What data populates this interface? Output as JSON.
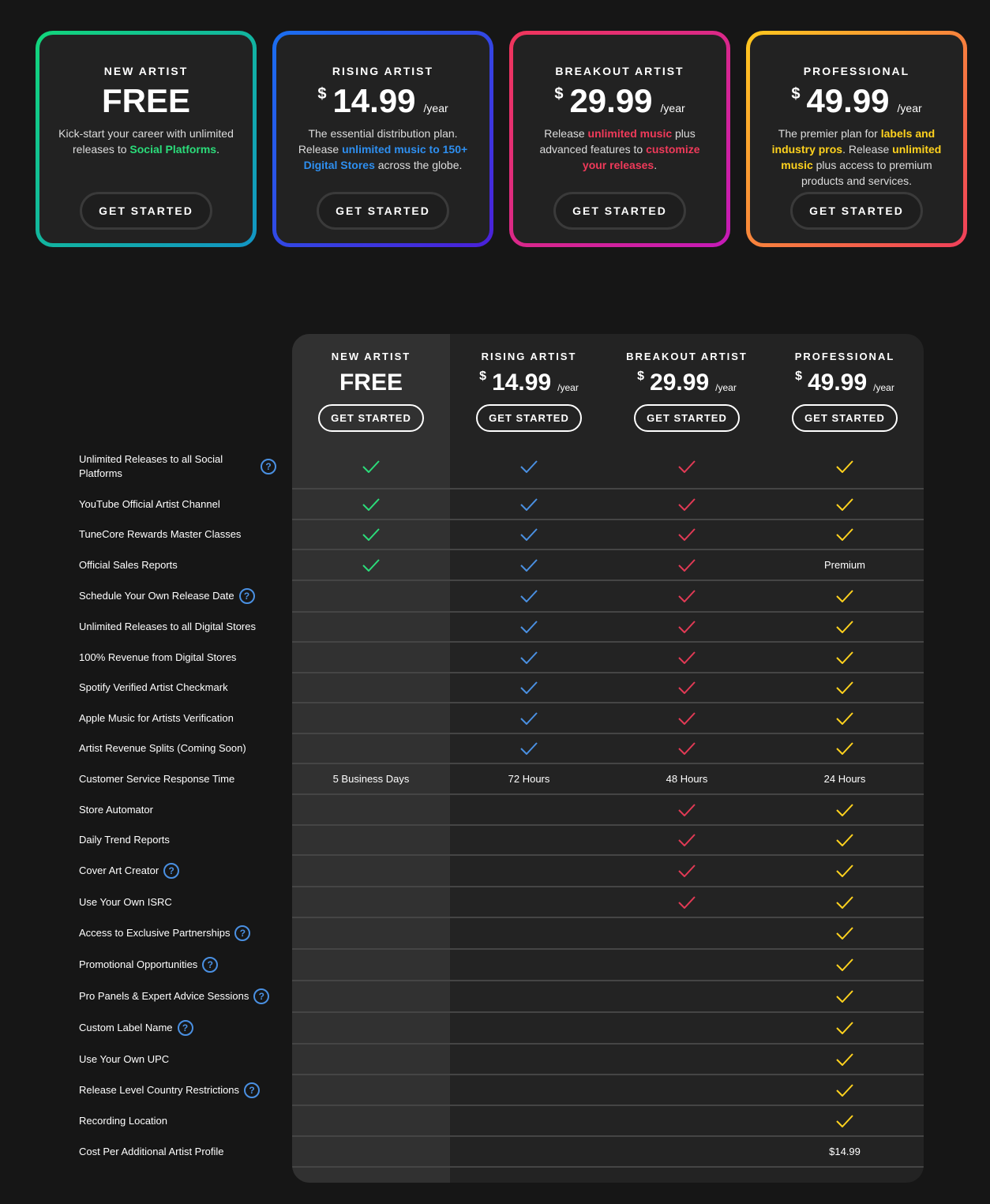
{
  "plans": [
    {
      "name": "NEW ARTIST",
      "price_big": "FREE",
      "currency": "",
      "period": "",
      "desc": [
        "Kick-start your career with unlimited releases to ",
        "Social Platforms",
        "."
      ],
      "highlight_color": "#2bdc7a",
      "button": "GET STARTED",
      "gradient": [
        "#12d67b",
        "#1294c4"
      ]
    },
    {
      "name": "RISING ARTIST",
      "price_big": "14.99",
      "currency": "$",
      "period": "/year",
      "desc": [
        "The essential distribution plan. Release ",
        "unlimited music to 150+ Digital Stores",
        " across the globe."
      ],
      "highlight_color": "#2e8ff0",
      "button": "GET STARTED",
      "gradient": [
        "#1a6ff0",
        "#4a20d8"
      ]
    },
    {
      "name": "BREAKOUT ARTIST",
      "price_big": "29.99",
      "currency": "$",
      "period": "/year",
      "desc": [
        "Release ",
        "unlimited music",
        " plus advanced features to ",
        "customize your releases",
        "."
      ],
      "highlight_color": "#f03a5a",
      "button": "GET STARTED",
      "gradient": [
        "#f0365a",
        "#c41ab8"
      ]
    },
    {
      "name": "PROFESSIONAL",
      "price_big": "49.99",
      "currency": "$",
      "period": "/year",
      "desc": [
        "The premier plan for ",
        "labels and industry pros",
        ". Release ",
        "unlimited music",
        " plus access to premium products and services."
      ],
      "highlight_color": "#ffd21e",
      "button": "GET STARTED",
      "gradient": [
        "#ffc81e",
        "#f03e5a"
      ]
    }
  ],
  "table": {
    "check_colors": [
      "#2bdc7a",
      "#4a90e2",
      "#e23a55",
      "#ffd21e"
    ],
    "rows": [
      {
        "label": "Unlimited Releases to all Social Platforms",
        "help": true,
        "cells": [
          "check",
          "check",
          "check",
          "check"
        ]
      },
      {
        "label": "YouTube Official Artist Channel",
        "help": false,
        "cells": [
          "check",
          "check",
          "check",
          "check"
        ]
      },
      {
        "label": "TuneCore Rewards Master Classes",
        "help": false,
        "cells": [
          "check",
          "check",
          "check",
          "check"
        ]
      },
      {
        "label": "Official Sales Reports",
        "help": false,
        "cells": [
          "check",
          "check",
          "check",
          "Premium"
        ]
      },
      {
        "label": "Schedule Your Own Release Date",
        "help": true,
        "cells": [
          "",
          "check",
          "check",
          "check"
        ]
      },
      {
        "label": "Unlimited Releases to all Digital Stores",
        "help": false,
        "cells": [
          "",
          "check",
          "check",
          "check"
        ]
      },
      {
        "label": "100% Revenue from Digital Stores",
        "help": false,
        "cells": [
          "",
          "check",
          "check",
          "check"
        ]
      },
      {
        "label": "Spotify Verified Artist Checkmark",
        "help": false,
        "cells": [
          "",
          "check",
          "check",
          "check"
        ]
      },
      {
        "label": "Apple Music for Artists Verification",
        "help": false,
        "cells": [
          "",
          "check",
          "check",
          "check"
        ]
      },
      {
        "label": "Artist Revenue Splits (Coming Soon)",
        "help": false,
        "cells": [
          "",
          "check",
          "check",
          "check"
        ]
      },
      {
        "label": "Customer Service Response Time",
        "help": false,
        "cells": [
          "5 Business Days",
          "72 Hours",
          "48 Hours",
          "24 Hours"
        ]
      },
      {
        "label": "Store Automator",
        "help": false,
        "cells": [
          "",
          "",
          "check",
          "check"
        ]
      },
      {
        "label": "Daily Trend Reports",
        "help": false,
        "cells": [
          "",
          "",
          "check",
          "check"
        ]
      },
      {
        "label": "Cover Art Creator",
        "help": true,
        "cells": [
          "",
          "",
          "check",
          "check"
        ]
      },
      {
        "label": "Use Your Own ISRC",
        "help": false,
        "cells": [
          "",
          "",
          "check",
          "check"
        ]
      },
      {
        "label": "Access to Exclusive Partnerships",
        "help": true,
        "cells": [
          "",
          "",
          "",
          "check"
        ]
      },
      {
        "label": "Promotional Opportunities",
        "help": true,
        "cells": [
          "",
          "",
          "",
          "check"
        ]
      },
      {
        "label": "Pro Panels & Expert Advice Sessions",
        "help": true,
        "cells": [
          "",
          "",
          "",
          "check"
        ]
      },
      {
        "label": "Custom Label Name",
        "help": true,
        "cells": [
          "",
          "",
          "",
          "check"
        ]
      },
      {
        "label": "Use Your Own UPC",
        "help": false,
        "cells": [
          "",
          "",
          "",
          "check"
        ]
      },
      {
        "label": "Release Level Country Restrictions",
        "help": true,
        "cells": [
          "",
          "",
          "",
          "check"
        ]
      },
      {
        "label": "Recording Location",
        "help": false,
        "cells": [
          "",
          "",
          "",
          "check"
        ]
      },
      {
        "label": "Cost Per Additional Artist Profile",
        "help": false,
        "cells": [
          "",
          "",
          "",
          "$14.99"
        ]
      }
    ]
  },
  "help_glyph": "?"
}
